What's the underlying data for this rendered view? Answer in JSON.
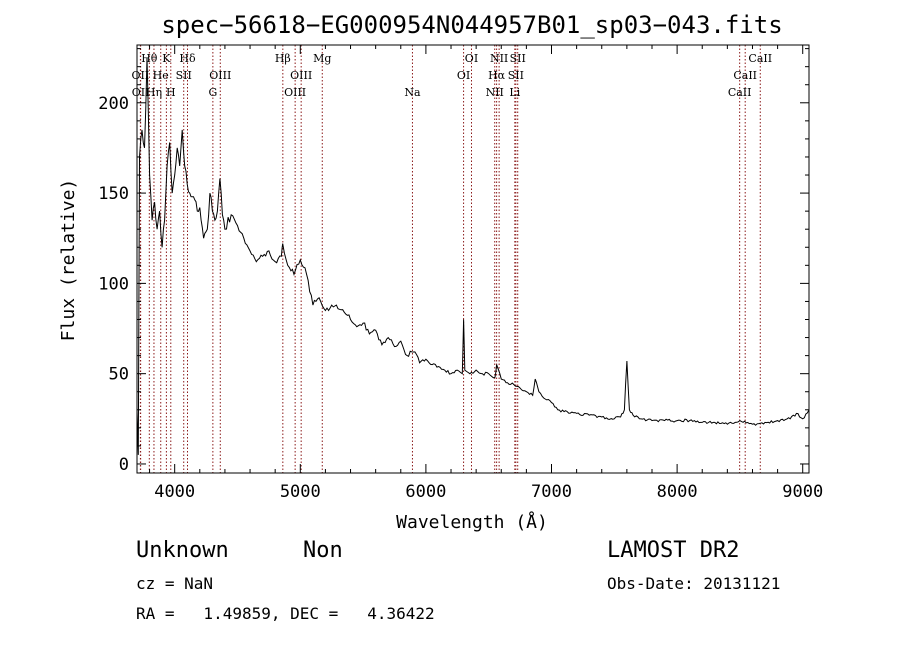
{
  "chart_data": {
    "type": "line",
    "title": "spec−56618−EG000954N044957B01_sp03−043.fits",
    "xlabel": "Wavelength (Å)",
    "ylabel": "Flux (relative)",
    "xlim": [
      3700,
      9050
    ],
    "ylim": [
      -5,
      232
    ],
    "xticks": [
      4000,
      5000,
      6000,
      7000,
      8000,
      9000
    ],
    "yticks": [
      0,
      50,
      100,
      150,
      200
    ],
    "grid": false,
    "series": [
      {
        "x": [
          3700,
          3710,
          3720,
          3740,
          3760,
          3780,
          3800,
          3820,
          3840,
          3860,
          3880,
          3900,
          3920,
          3940,
          3960,
          3980,
          4000,
          4020,
          4040,
          4060,
          4080,
          4100,
          4120,
          4150,
          4180,
          4200,
          4230,
          4260,
          4280,
          4300,
          4320,
          4340,
          4360,
          4380,
          4400,
          4450,
          4500,
          4550,
          4600,
          4650,
          4700,
          4750,
          4800,
          4850,
          4860,
          4900,
          4950,
          5000,
          5050,
          5100,
          5150,
          5200,
          5250,
          5300,
          5350,
          5400,
          5450,
          5500,
          5550,
          5600,
          5650,
          5700,
          5750,
          5800,
          5850,
          5900,
          5950,
          6000,
          6050,
          6100,
          6150,
          6200,
          6250,
          6290,
          6300,
          6310,
          6350,
          6400,
          6450,
          6500,
          6550,
          6563,
          6600,
          6650,
          6700,
          6750,
          6800,
          6850,
          6870,
          6900,
          6950,
          7000,
          7050,
          7100,
          7200,
          7300,
          7400,
          7500,
          7550,
          7580,
          7600,
          7620,
          7650,
          7700,
          7800,
          7900,
          8000,
          8100,
          8200,
          8300,
          8400,
          8500,
          8600,
          8700,
          8800,
          8900,
          8950,
          9000,
          9050
        ],
        "y": [
          30,
          5,
          170,
          185,
          175,
          225,
          160,
          135,
          145,
          130,
          140,
          120,
          135,
          165,
          178,
          150,
          160,
          175,
          165,
          185,
          165,
          155,
          150,
          148,
          140,
          142,
          125,
          130,
          150,
          140,
          135,
          140,
          158,
          138,
          130,
          138,
          132,
          125,
          118,
          112,
          115,
          118,
          112,
          115,
          122,
          110,
          105,
          113,
          105,
          88,
          92,
          85,
          88,
          86,
          84,
          80,
          76,
          78,
          72,
          74,
          66,
          70,
          65,
          68,
          60,
          62,
          56,
          58,
          55,
          54,
          52,
          50,
          52,
          50,
          80,
          52,
          50,
          52,
          50,
          50,
          48,
          55,
          47,
          45,
          44,
          42,
          40,
          38,
          47,
          40,
          36,
          34,
          30,
          29,
          28,
          27,
          26,
          25,
          26,
          30,
          57,
          30,
          27,
          25,
          24,
          24,
          24,
          24,
          23,
          23,
          22,
          24,
          22,
          23,
          24,
          25,
          28,
          25,
          30
        ]
      }
    ],
    "line_ids": [
      {
        "label": "Hθ",
        "wave": 3798,
        "row": 0
      },
      {
        "label": "OII",
        "wave": 3727,
        "row": 1
      },
      {
        "label": "OII",
        "wave": 3729,
        "row": 2
      },
      {
        "label": "He",
        "wave": 3889,
        "row": 1
      },
      {
        "label": "Hη",
        "wave": 3835,
        "row": 2
      },
      {
        "label": "K",
        "wave": 3934,
        "row": 0
      },
      {
        "label": "SII",
        "wave": 4072,
        "row": 1
      },
      {
        "label": "H",
        "wave": 3969,
        "row": 2
      },
      {
        "label": "Hδ",
        "wave": 4102,
        "row": 0
      },
      {
        "label": "OIII",
        "wave": 4363,
        "row": 1
      },
      {
        "label": "G",
        "wave": 4304,
        "row": 2
      },
      {
        "label": "Hβ",
        "wave": 4861,
        "row": 0
      },
      {
        "label": "OIII",
        "wave": 5007,
        "row": 1
      },
      {
        "label": "OIII",
        "wave": 4959,
        "row": 2
      },
      {
        "label": "Mg",
        "wave": 5175,
        "row": 0
      },
      {
        "label": "Na",
        "wave": 5893,
        "row": 2
      },
      {
        "label": "OI",
        "wave": 6363,
        "row": 0
      },
      {
        "label": "OI",
        "wave": 6300,
        "row": 1
      },
      {
        "label": "NII",
        "wave": 6583,
        "row": 0
      },
      {
        "label": "Hα",
        "wave": 6563,
        "row": 1
      },
      {
        "label": "NII",
        "wave": 6548,
        "row": 2
      },
      {
        "label": "SII",
        "wave": 6731,
        "row": 0
      },
      {
        "label": "SII",
        "wave": 6716,
        "row": 1
      },
      {
        "label": "Li",
        "wave": 6708,
        "row": 2
      },
      {
        "label": "CaII",
        "wave": 8662,
        "row": 0
      },
      {
        "label": "CaII",
        "wave": 8542,
        "row": 1
      },
      {
        "label": "CaII",
        "wave": 8498,
        "row": 2
      }
    ]
  },
  "info": {
    "object_class": "Unknown",
    "subclass": "Non",
    "survey": "LAMOST DR2",
    "redshift": "cz = NaN",
    "obs_date": "Obs-Date: 20131121",
    "coords": "RA =   1.49859, DEC =   4.36422"
  },
  "colors": {
    "spectrum": "#000000",
    "line_marker": "#8b1a1a",
    "axis": "#000000"
  }
}
